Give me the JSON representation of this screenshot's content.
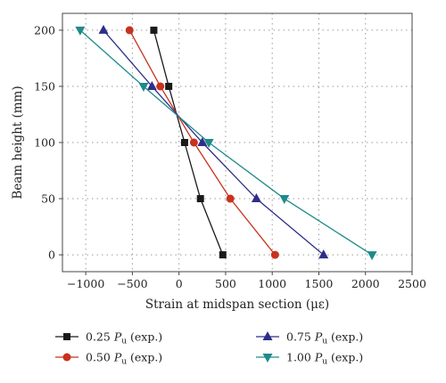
{
  "chart_data": {
    "type": "line",
    "xlabel": "Strain at midspan section (με)",
    "ylabel": "Beam height (mm)",
    "xlim": [
      -1250,
      2500
    ],
    "ylim": [
      -15,
      215
    ],
    "x_ticks": [
      -1000,
      -500,
      0,
      500,
      1000,
      1500,
      2000,
      2500
    ],
    "y_ticks": [
      0,
      50,
      100,
      150,
      200
    ],
    "grid": "dotted",
    "legend_placement": "bottom",
    "series": [
      {
        "name": "0.25 Pu (exp.)",
        "label_main": "0.25 ",
        "label_p": "P",
        "label_sub": "u",
        "label_tail": " (exp.)",
        "marker": "square",
        "color": "#1a1a1a",
        "points": [
          {
            "x": 470,
            "y": 0
          },
          {
            "x": 230,
            "y": 50
          },
          {
            "x": 60,
            "y": 100
          },
          {
            "x": -110,
            "y": 150
          },
          {
            "x": -270,
            "y": 200
          }
        ]
      },
      {
        "name": "0.50 Pu (exp.)",
        "label_main": "0.50 ",
        "label_p": "P",
        "label_sub": "u",
        "label_tail": " (exp.)",
        "marker": "circle",
        "color": "#c8321e",
        "points": [
          {
            "x": 1030,
            "y": 0
          },
          {
            "x": 550,
            "y": 50
          },
          {
            "x": 160,
            "y": 100
          },
          {
            "x": -200,
            "y": 150
          },
          {
            "x": -530,
            "y": 200
          }
        ]
      },
      {
        "name": "0.75 Pu (exp.)",
        "label_main": "0.75 ",
        "label_p": "P",
        "label_sub": "u",
        "label_tail": " (exp.)",
        "marker": "triangle-up",
        "color": "#2e2e8a",
        "points": [
          {
            "x": 1550,
            "y": 0
          },
          {
            "x": 830,
            "y": 50
          },
          {
            "x": 250,
            "y": 100
          },
          {
            "x": -290,
            "y": 150
          },
          {
            "x": -810,
            "y": 200
          }
        ]
      },
      {
        "name": "1.00 Pu (exp.)",
        "label_main": "1.00 ",
        "label_p": "P",
        "label_sub": "u",
        "label_tail": " (exp.)",
        "marker": "triangle-down",
        "color": "#1f8a8a",
        "points": [
          {
            "x": 2070,
            "y": 0
          },
          {
            "x": 1130,
            "y": 50
          },
          {
            "x": 320,
            "y": 100
          },
          {
            "x": -380,
            "y": 150
          },
          {
            "x": -1060,
            "y": 200
          }
        ]
      }
    ]
  }
}
